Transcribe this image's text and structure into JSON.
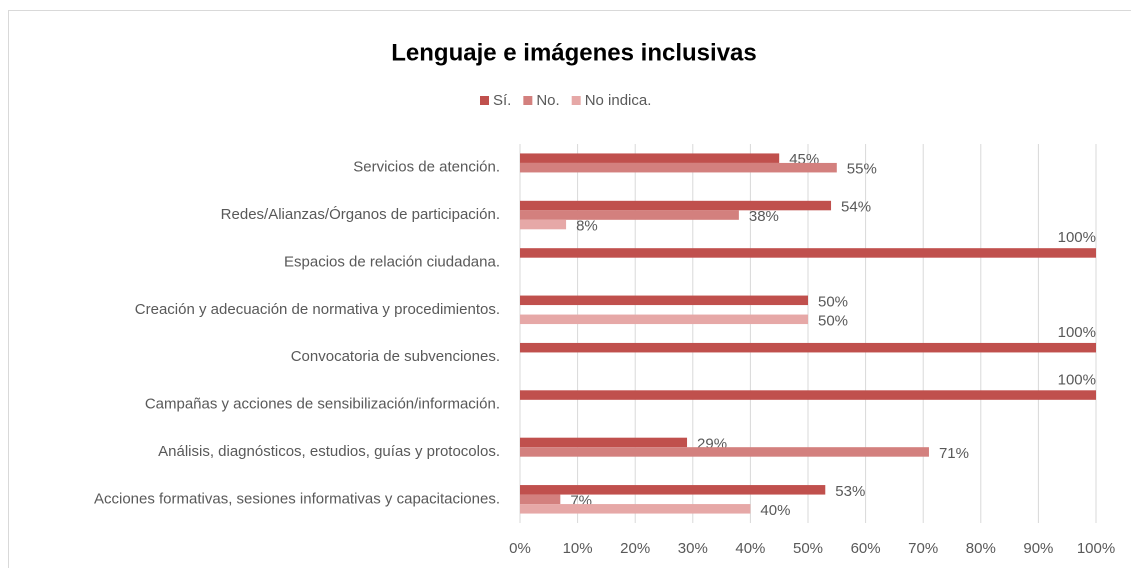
{
  "chart_data": {
    "type": "hbar",
    "title": "Lenguaje e imágenes inclusivas",
    "categories": [
      "Servicios de atención.",
      "Redes/Alianzas/Órganos de participación.",
      "Espacios de relación ciudadana.",
      "Creación y adecuación de normativa y procedimientos.",
      "Convocatoria de subvenciones.",
      "Campañas y acciones de sensibilización/información.",
      "Análisis, diagnósticos, estudios, guías y protocolos.",
      "Acciones formativas, sesiones informativas y capacitaciones."
    ],
    "series": [
      {
        "name": "Sí.",
        "color": "#c0504d",
        "values": [
          45,
          54,
          100,
          50,
          100,
          100,
          29,
          53
        ],
        "value_labels": [
          "45%",
          "54%",
          "100%",
          "50%",
          "100%",
          "100%",
          "29%",
          "53%"
        ]
      },
      {
        "name": "No.",
        "color": "#d3807e",
        "values": [
          55,
          38,
          null,
          null,
          null,
          null,
          71,
          7
        ],
        "value_labels": [
          "55%",
          "38%",
          null,
          null,
          null,
          null,
          "71%",
          "7%"
        ]
      },
      {
        "name": "No indica.",
        "color": "#e6a8a7",
        "values": [
          null,
          8,
          null,
          50,
          null,
          null,
          null,
          40
        ],
        "value_labels": [
          null,
          "8%",
          null,
          "50%",
          null,
          null,
          null,
          "40%"
        ]
      }
    ],
    "xlim": [
      0,
      100
    ],
    "xticks": [
      {
        "value": 0,
        "label": "0%"
      },
      {
        "value": 10,
        "label": "10%"
      },
      {
        "value": 20,
        "label": "20%"
      },
      {
        "value": 30,
        "label": "30%"
      },
      {
        "value": 40,
        "label": "40%"
      },
      {
        "value": 50,
        "label": "50%"
      },
      {
        "value": 60,
        "label": "60%"
      },
      {
        "value": 70,
        "label": "70%"
      },
      {
        "value": 80,
        "label": "80%"
      },
      {
        "value": 90,
        "label": "90%"
      },
      {
        "value": 100,
        "label": "100%"
      }
    ],
    "grid": true,
    "legend": "top"
  }
}
